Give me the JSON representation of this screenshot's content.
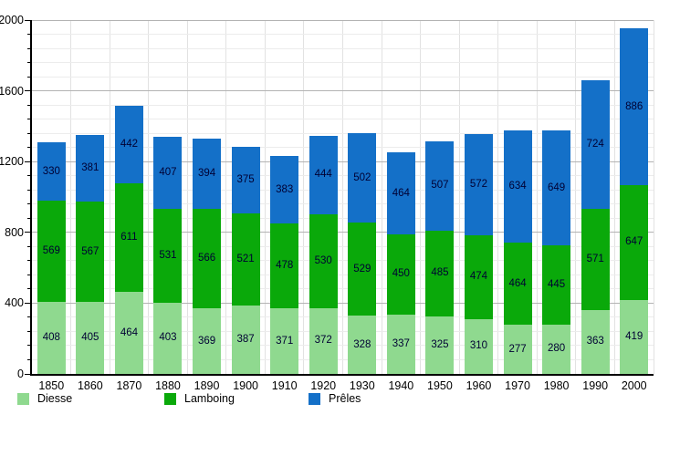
{
  "chart_data": {
    "type": "bar",
    "stacked": true,
    "title": "",
    "xlabel": "",
    "ylabel": "",
    "categories": [
      "1850",
      "1860",
      "1870",
      "1880",
      "1890",
      "1900",
      "1910",
      "1920",
      "1930",
      "1940",
      "1950",
      "1960",
      "1970",
      "1980",
      "1990",
      "2000"
    ],
    "series": [
      {
        "name": "Diesse",
        "color": "#8fd98f",
        "values": [
          408,
          405,
          464,
          403,
          369,
          387,
          371,
          372,
          328,
          337,
          325,
          310,
          277,
          280,
          363,
          419
        ]
      },
      {
        "name": "Lamboing",
        "color": "#0aa90a",
        "values": [
          569,
          567,
          611,
          531,
          566,
          521,
          478,
          530,
          529,
          450,
          485,
          474,
          464,
          445,
          571,
          647
        ]
      },
      {
        "name": "Prêles",
        "color": "#1470c8",
        "values": [
          330,
          381,
          442,
          407,
          394,
          375,
          383,
          444,
          502,
          464,
          507,
          572,
          634,
          649,
          724,
          886
        ]
      }
    ],
    "ylim": [
      0,
      2000
    ],
    "y_major_tick_labels": [
      "0",
      "400",
      "800",
      "1200",
      "1600",
      "2000"
    ],
    "y_major_interval": 400,
    "y_minor_interval": 80,
    "grid": true,
    "legend_position": "bottom",
    "colors": {
      "axis": "#000000",
      "major_grid": "#b3b3b3",
      "minor_grid": "#ececec",
      "vertical_grid": "#e2e2e2",
      "data_label": "#000033",
      "background": "#ffffff"
    }
  },
  "legend": {
    "items": [
      {
        "label": "Diesse",
        "color": "#8fd98f",
        "x": 19
      },
      {
        "label": "Lamboing",
        "color": "#0aa90a",
        "x": 180
      },
      {
        "label": "Prêles",
        "color": "#1470c8",
        "x": 338
      }
    ]
  }
}
